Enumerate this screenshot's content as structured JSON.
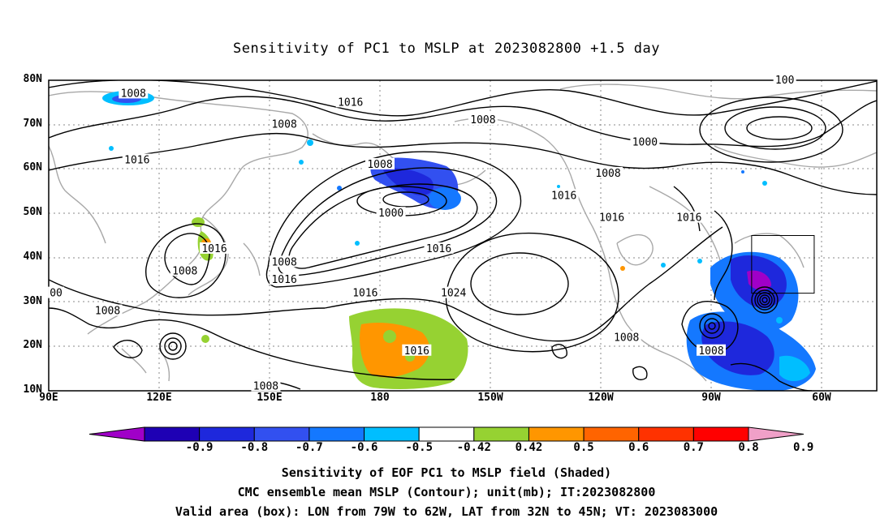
{
  "map": {
    "title": "Sensitivity of PC1 to MSLP at 2023082800 +1.5 day",
    "lat_labels": [
      "80N",
      "70N",
      "60N",
      "50N",
      "40N",
      "30N",
      "20N",
      "10N"
    ],
    "lon_labels": [
      "90E",
      "120E",
      "150E",
      "180",
      "150W",
      "120W",
      "90W",
      "60W"
    ],
    "contour_labels": [
      {
        "text": "1008",
        "lon": 113,
        "lat": 77
      },
      {
        "text": "1016",
        "lon": 172,
        "lat": 75
      },
      {
        "text": "1008",
        "lon": 154,
        "lat": 70
      },
      {
        "text": "1008",
        "lon": 208,
        "lat": 71
      },
      {
        "text": "1000",
        "lon": 252,
        "lat": 66
      },
      {
        "text": "1008",
        "lon": 180,
        "lat": 61
      },
      {
        "text": "1016",
        "lon": 114,
        "lat": 62
      },
      {
        "text": "1008",
        "lon": 242,
        "lat": 59
      },
      {
        "text": "1000",
        "lon": 183,
        "lat": 50
      },
      {
        "text": "1016",
        "lon": 230,
        "lat": 54
      },
      {
        "text": "1016",
        "lon": 196,
        "lat": 42
      },
      {
        "text": "1016",
        "lon": 243,
        "lat": 49
      },
      {
        "text": "1016",
        "lon": 264,
        "lat": 49
      },
      {
        "text": "1016",
        "lon": 135,
        "lat": 42
      },
      {
        "text": "1008",
        "lon": 127,
        "lat": 37
      },
      {
        "text": "1008",
        "lon": 154,
        "lat": 39
      },
      {
        "text": "1016",
        "lon": 154,
        "lat": 35
      },
      {
        "text": "1016",
        "lon": 176,
        "lat": 32
      },
      {
        "text": "1024",
        "lon": 200,
        "lat": 32
      },
      {
        "text": "1008",
        "lon": 106,
        "lat": 28
      },
      {
        "text": "1008",
        "lon": 247,
        "lat": 22
      },
      {
        "text": "1016",
        "lon": 190,
        "lat": 19
      },
      {
        "text": "1008",
        "lon": 270,
        "lat": 19
      },
      {
        "text": "1008",
        "lon": 149,
        "lat": 11
      },
      {
        "text": "00",
        "lon": 92,
        "lat": 32
      },
      {
        "text": "100",
        "lon": 290,
        "lat": 80
      }
    ],
    "valid_box": {
      "lon_min": 281,
      "lon_max": 298,
      "lat_min": 32,
      "lat_max": 45
    },
    "colors": {
      "frame": "#000000",
      "coast": "#a0a0a0",
      "contour": "#000000",
      "grid": "#888888"
    }
  },
  "colorbar": {
    "labels": [
      "-0.9",
      "-0.8",
      "-0.7",
      "-0.6",
      "-0.5",
      "-0.42",
      "0.42",
      "0.5",
      "0.6",
      "0.7",
      "0.8",
      "0.9"
    ],
    "colors": [
      "#a000c8",
      "#1e00b4",
      "#1e28dc",
      "#3250f0",
      "#1478ff",
      "#00beff",
      "#ffffff",
      "#96d232",
      "#ff9600",
      "#ff6400",
      "#ff3200",
      "#ff0000",
      "#f0a0c8"
    ]
  },
  "captions": {
    "line1": "Sensitivity of EOF PC1 to MSLP field (Shaded)",
    "line2": "CMC ensemble mean MSLP (Contour); unit(mb); IT:2023082800",
    "line3": "Valid area (box): LON from 79W to 62W, LAT from 32N to 45N; VT: 2023083000"
  }
}
